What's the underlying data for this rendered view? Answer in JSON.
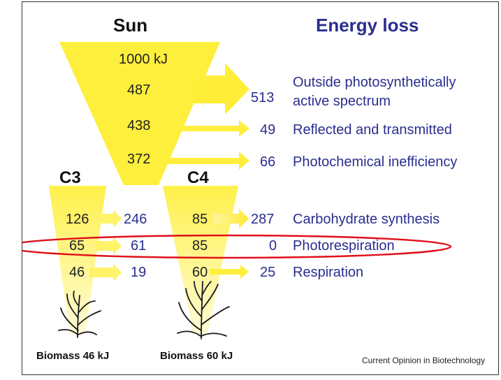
{
  "colors": {
    "header_black": "#111111",
    "header_blue": "#2a2e8e",
    "value_blue": "#2a2e8e",
    "value_black": "#222222",
    "highlight_ellipse": "#e0101a",
    "funnel_yellow": "#ffef3d"
  },
  "headers": {
    "sun": "Sun",
    "energy_loss": "Energy loss",
    "c3": "C3",
    "c4": "C4"
  },
  "sun_column": {
    "input": "1000 kJ",
    "step1": "487",
    "step2": "438",
    "step3": "372"
  },
  "losses": [
    {
      "value": "513",
      "label_line1": "Outside photosynthetically",
      "label_line2": "active spectrum"
    },
    {
      "value": "49",
      "label": "Reflected and transmitted"
    },
    {
      "value": "66",
      "label": "Photochemical inefficiency"
    }
  ],
  "processes": [
    {
      "c3_in": "126",
      "c3_loss": "246",
      "c4_in": "85",
      "loss": "287",
      "label": "Carbohydrate synthesis"
    },
    {
      "c3_in": "65",
      "c3_loss": "61",
      "c4_in": "85",
      "loss": "0",
      "label": "Photorespiration",
      "highlighted": true
    },
    {
      "c3_in": "46",
      "c3_loss": "19",
      "c4_in": "60",
      "loss": "25",
      "label": "Respiration"
    }
  ],
  "biomass": {
    "c3": "Biomass 46 kJ",
    "c4": "Biomass 60 kJ"
  },
  "source": "Current Opinion in Biotechnology",
  "icons": [
    "plant-icon",
    "arrow-icon"
  ]
}
